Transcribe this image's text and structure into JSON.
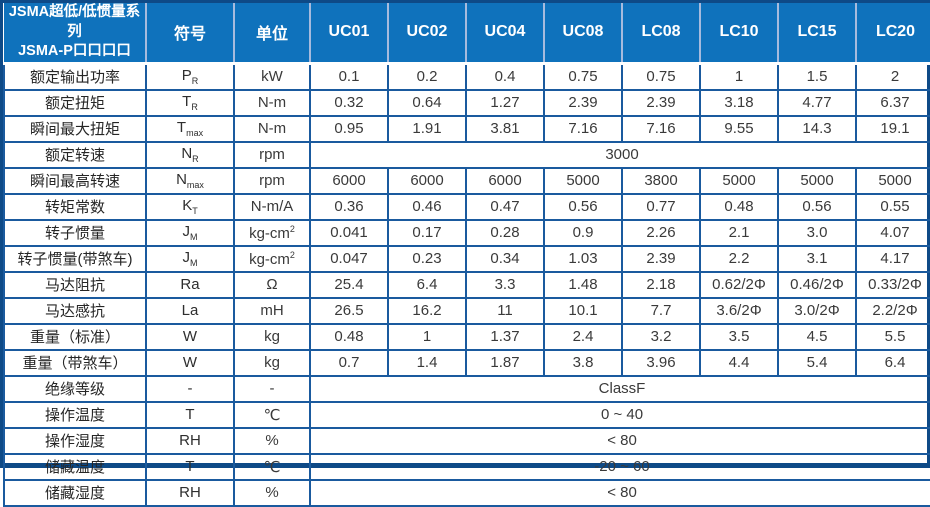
{
  "colors": {
    "header_blue": "#0F72BC",
    "grid_blue": "#1A5A9E",
    "outer_navy": "#0E4A87",
    "header_sep": "#A7BBDD",
    "body_text": "#3A3A3A",
    "label_text": "#262626"
  },
  "header": {
    "series_line1": "JSMA超低/低惯量系列",
    "series_line2": "JSMA-P口口口口",
    "symbol_label": "符号",
    "unit_label": "单位",
    "models": [
      "UC01",
      "UC02",
      "UC04",
      "UC08",
      "LC08",
      "LC10",
      "LC15",
      "LC20"
    ]
  },
  "rows": [
    {
      "label": "额定输出功率",
      "symbol": "P",
      "sub": "R",
      "unit": "kW",
      "values": [
        "0.1",
        "0.2",
        "0.4",
        "0.75",
        "0.75",
        "1",
        "1.5",
        "2"
      ]
    },
    {
      "label": "额定扭矩",
      "symbol": "T",
      "sub": "R",
      "unit": "N-m",
      "values": [
        "0.32",
        "0.64",
        "1.27",
        "2.39",
        "2.39",
        "3.18",
        "4.77",
        "6.37"
      ]
    },
    {
      "label": "瞬间最大扭矩",
      "symbol": "T",
      "sub": "max",
      "unit": "N-m",
      "values": [
        "0.95",
        "1.91",
        "3.81",
        "7.16",
        "7.16",
        "9.55",
        "14.3",
        "19.1"
      ]
    },
    {
      "label": "额定转速",
      "symbol": "N",
      "sub": "R",
      "unit": "rpm",
      "merged": "3000"
    },
    {
      "label": "瞬间最高转速",
      "symbol": "N",
      "sub": "max",
      "unit": "rpm",
      "values": [
        "6000",
        "6000",
        "6000",
        "5000",
        "3800",
        "5000",
        "5000",
        "5000"
      ]
    },
    {
      "label": "转矩常数",
      "symbol": "K",
      "sub": "T",
      "unit": "N-m/A",
      "values": [
        "0.36",
        "0.46",
        "0.47",
        "0.56",
        "0.77",
        "0.48",
        "0.56",
        "0.55"
      ]
    },
    {
      "label": "转子惯量",
      "symbol": "J",
      "sub": "M",
      "unit": "kg-cm",
      "unit_sup": "2",
      "values": [
        "0.041",
        "0.17",
        "0.28",
        "0.9",
        "2.26",
        "2.1",
        "3.0",
        "4.07"
      ]
    },
    {
      "label": "转子惯量(带煞车)",
      "symbol": "J",
      "sub": "M",
      "unit": "kg-cm",
      "unit_sup": "2",
      "values": [
        "0.047",
        "0.23",
        "0.34",
        "1.03",
        "2.39",
        "2.2",
        "3.1",
        "4.17"
      ]
    },
    {
      "label": "马达阻抗",
      "symbol": "Ra",
      "unit": "Ω",
      "values": [
        "25.4",
        "6.4",
        "3.3",
        "1.48",
        "2.18",
        "0.62/2Φ",
        "0.46/2Φ",
        "0.33/2Φ"
      ]
    },
    {
      "label": "马达感抗",
      "symbol": "La",
      "unit": "mH",
      "values": [
        "26.5",
        "16.2",
        "11",
        "10.1",
        "7.7",
        "3.6/2Φ",
        "3.0/2Φ",
        "2.2/2Φ"
      ]
    },
    {
      "label": "重量（标准）",
      "symbol": "W",
      "unit": "kg",
      "values": [
        "0.48",
        "1",
        "1.37",
        "2.4",
        "3.2",
        "3.5",
        "4.5",
        "5.5"
      ]
    },
    {
      "label": "重量（带煞车）",
      "symbol": "W",
      "unit": "kg",
      "values": [
        "0.7",
        "1.4",
        "1.87",
        "3.8",
        "3.96",
        "4.4",
        "5.4",
        "6.4"
      ]
    },
    {
      "label": "绝缘等级",
      "symbol": "-",
      "unit": "-",
      "merged": "ClassF"
    },
    {
      "label": "操作温度",
      "symbol": "T",
      "unit": "℃",
      "merged": "0 ~ 40"
    },
    {
      "label": "操作湿度",
      "symbol": "RH",
      "unit": "%",
      "merged": "< 80"
    },
    {
      "label": "储藏温度",
      "symbol": "T",
      "unit": "℃",
      "merged": "-20 ~ 60"
    },
    {
      "label": "储藏湿度",
      "symbol": "RH",
      "unit": "%",
      "merged": "< 80"
    }
  ]
}
